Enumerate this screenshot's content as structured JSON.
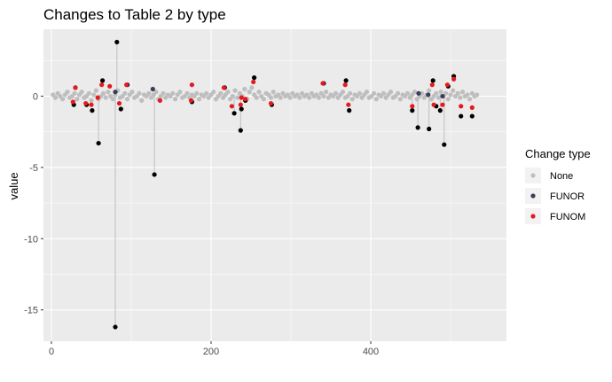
{
  "chart_data": {
    "type": "scatter",
    "title": "Changes to Table 2 by type",
    "xlabel": "",
    "ylabel": "value",
    "xlim": [
      -10,
      570
    ],
    "ylim": [
      -17.2,
      4.7
    ],
    "x_ticks": [
      0,
      200,
      400
    ],
    "y_ticks": [
      -15,
      -10,
      -5,
      0
    ],
    "x_tick_labels": [
      "0",
      "200",
      "400"
    ],
    "y_tick_labels": [
      "-15",
      "-10",
      "-5",
      "0"
    ],
    "grid": true,
    "background": "#ebebeb",
    "grid_color": "#ffffff",
    "legend": {
      "title": "Change type",
      "position": "right",
      "entries": [
        {
          "label": "None",
          "color": "#bebebe"
        },
        {
          "label": "FUNOR",
          "color": "#3b3b5c"
        },
        {
          "label": "FUNOM",
          "color": "#e41a1c"
        }
      ]
    },
    "segment_color": "#bebebe",
    "funor_point_color": "#000000",
    "series": [
      {
        "name": "None",
        "color": "#bebebe",
        "points": [
          [
            2,
            0.1
          ],
          [
            5,
            -0.1
          ],
          [
            8,
            0.2
          ],
          [
            11,
            0.0
          ],
          [
            14,
            -0.2
          ],
          [
            17,
            0.1
          ],
          [
            20,
            0.3
          ],
          [
            23,
            -0.1
          ],
          [
            26,
            0.0
          ],
          [
            29,
            0.2
          ],
          [
            32,
            -0.2
          ],
          [
            35,
            0.1
          ],
          [
            38,
            0.3
          ],
          [
            41,
            -0.1
          ],
          [
            44,
            0.0
          ],
          [
            47,
            0.2
          ],
          [
            50,
            -0.3
          ],
          [
            53,
            0.1
          ],
          [
            56,
            0.4
          ],
          [
            59,
            -0.2
          ],
          [
            62,
            0.0
          ],
          [
            65,
            0.2
          ],
          [
            68,
            -0.1
          ],
          [
            71,
            0.3
          ],
          [
            74,
            0.0
          ],
          [
            77,
            -0.2
          ],
          [
            80,
            0.1
          ],
          [
            83,
            0.4
          ],
          [
            86,
            -0.1
          ],
          [
            89,
            0.0
          ],
          [
            92,
            0.2
          ],
          [
            95,
            -0.2
          ],
          [
            98,
            0.1
          ],
          [
            101,
            0.3
          ],
          [
            104,
            -0.1
          ],
          [
            107,
            0.0
          ],
          [
            110,
            0.2
          ],
          [
            113,
            -0.3
          ],
          [
            116,
            0.1
          ],
          [
            119,
            0.0
          ],
          [
            122,
            0.2
          ],
          [
            125,
            -0.1
          ],
          [
            128,
            0.1
          ],
          [
            131,
            0.3
          ],
          [
            134,
            -0.2
          ],
          [
            137,
            0.0
          ],
          [
            140,
            0.2
          ],
          [
            143,
            -0.1
          ],
          [
            146,
            0.1
          ],
          [
            149,
            0.0
          ],
          [
            152,
            0.2
          ],
          [
            155,
            -0.2
          ],
          [
            158,
            0.1
          ],
          [
            161,
            0.3
          ],
          [
            164,
            -0.1
          ],
          [
            167,
            0.0
          ],
          [
            170,
            0.2
          ],
          [
            173,
            -0.1
          ],
          [
            176,
            0.1
          ],
          [
            179,
            0.0
          ],
          [
            182,
            0.2
          ],
          [
            185,
            -0.2
          ],
          [
            188,
            0.1
          ],
          [
            191,
            0.0
          ],
          [
            194,
            0.2
          ],
          [
            197,
            -0.1
          ],
          [
            200,
            0.1
          ],
          [
            203,
            0.3
          ],
          [
            206,
            -0.2
          ],
          [
            209,
            0.0
          ],
          [
            212,
            0.2
          ],
          [
            215,
            -0.1
          ],
          [
            218,
            0.1
          ],
          [
            221,
            0.3
          ],
          [
            224,
            -0.2
          ],
          [
            227,
            0.0
          ],
          [
            230,
            0.4
          ],
          [
            233,
            -0.1
          ],
          [
            236,
            0.2
          ],
          [
            239,
            0.0
          ],
          [
            242,
            0.5
          ],
          [
            245,
            -0.2
          ],
          [
            248,
            0.3
          ],
          [
            251,
            0.6
          ],
          [
            254,
            0.1
          ],
          [
            257,
            -0.1
          ],
          [
            260,
            0.3
          ],
          [
            263,
            0.0
          ],
          [
            266,
            -0.2
          ],
          [
            269,
            0.2
          ],
          [
            272,
            0.1
          ],
          [
            275,
            -0.1
          ],
          [
            278,
            0.3
          ],
          [
            281,
            0.0
          ],
          [
            284,
            0.1
          ],
          [
            287,
            -0.1
          ],
          [
            290,
            0.2
          ],
          [
            293,
            0.0
          ],
          [
            296,
            0.1
          ],
          [
            299,
            -0.1
          ],
          [
            302,
            0.2
          ],
          [
            305,
            0.0
          ],
          [
            308,
            0.1
          ],
          [
            311,
            -0.1
          ],
          [
            314,
            0.2
          ],
          [
            317,
            0.0
          ],
          [
            320,
            0.1
          ],
          [
            323,
            -0.1
          ],
          [
            326,
            0.2
          ],
          [
            329,
            0.0
          ],
          [
            332,
            0.1
          ],
          [
            335,
            -0.1
          ],
          [
            338,
            0.2
          ],
          [
            341,
            0.0
          ],
          [
            344,
            0.3
          ],
          [
            347,
            -0.1
          ],
          [
            350,
            0.1
          ],
          [
            353,
            0.0
          ],
          [
            356,
            0.2
          ],
          [
            359,
            -0.1
          ],
          [
            362,
            0.1
          ],
          [
            365,
            0.3
          ],
          [
            368,
            -0.1
          ],
          [
            371,
            0.0
          ],
          [
            374,
            0.2
          ],
          [
            377,
            -0.2
          ],
          [
            380,
            0.1
          ],
          [
            383,
            0.0
          ],
          [
            386,
            0.2
          ],
          [
            389,
            -0.1
          ],
          [
            392,
            0.1
          ],
          [
            395,
            0.3
          ],
          [
            398,
            -0.1
          ],
          [
            401,
            0.0
          ],
          [
            404,
            0.2
          ],
          [
            407,
            -0.2
          ],
          [
            410,
            0.1
          ],
          [
            413,
            0.0
          ],
          [
            416,
            0.2
          ],
          [
            419,
            -0.1
          ],
          [
            422,
            0.1
          ],
          [
            425,
            0.3
          ],
          [
            428,
            -0.1
          ],
          [
            431,
            0.0
          ],
          [
            434,
            0.2
          ],
          [
            437,
            -0.2
          ],
          [
            440,
            0.1
          ],
          [
            443,
            0.0
          ],
          [
            446,
            0.2
          ],
          [
            449,
            -0.1
          ],
          [
            452,
            0.1
          ],
          [
            455,
            0.3
          ],
          [
            458,
            -0.2
          ],
          [
            461,
            0.0
          ],
          [
            464,
            0.2
          ],
          [
            467,
            -0.1
          ],
          [
            470,
            0.1
          ],
          [
            473,
            0.4
          ],
          [
            476,
            -0.2
          ],
          [
            479,
            0.0
          ],
          [
            482,
            0.2
          ],
          [
            485,
            -0.1
          ],
          [
            488,
            0.3
          ],
          [
            491,
            0.0
          ],
          [
            494,
            0.2
          ],
          [
            497,
            -0.2
          ],
          [
            500,
            0.1
          ],
          [
            503,
            0.4
          ],
          [
            506,
            0.0
          ],
          [
            509,
            0.2
          ],
          [
            512,
            -0.1
          ],
          [
            515,
            0.3
          ],
          [
            518,
            0.0
          ],
          [
            521,
            0.1
          ],
          [
            524,
            -0.2
          ],
          [
            527,
            0.2
          ],
          [
            530,
            0.0
          ],
          [
            533,
            0.1
          ]
        ]
      },
      {
        "name": "FUNOR",
        "color": "#3b3b5c",
        "points": [
          [
            80,
            0.3
          ],
          [
            127,
            0.5
          ],
          [
            460,
            0.2
          ],
          [
            472,
            0.1
          ],
          [
            490,
            0.0
          ]
        ]
      },
      {
        "name": "FUNOM",
        "color": "#e41a1c",
        "points": [
          [
            27,
            -0.4
          ],
          [
            30,
            0.6
          ],
          [
            43,
            -0.5
          ],
          [
            50,
            -0.6
          ],
          [
            58,
            -0.1
          ],
          [
            63,
            0.8
          ],
          [
            73,
            0.7
          ],
          [
            85,
            -0.5
          ],
          [
            94,
            0.8
          ],
          [
            136,
            -0.3
          ],
          [
            175,
            -0.3
          ],
          [
            176,
            0.8
          ],
          [
            216,
            0.6
          ],
          [
            226,
            -0.7
          ],
          [
            237,
            -0.6
          ],
          [
            238,
            -0.1
          ],
          [
            243,
            -0.2
          ],
          [
            253,
            1.0
          ],
          [
            275,
            -0.5
          ],
          [
            340,
            0.9
          ],
          [
            368,
            0.8
          ],
          [
            372,
            -0.6
          ],
          [
            452,
            -0.7
          ],
          [
            477,
            0.8
          ],
          [
            479,
            -0.6
          ],
          [
            490,
            -0.6
          ],
          [
            496,
            0.8
          ],
          [
            504,
            1.2
          ],
          [
            513,
            -0.7
          ],
          [
            527,
            -0.8
          ]
        ]
      }
    ],
    "segments": [
      {
        "x": 82,
        "y1": 3.8,
        "y2": 0.2
      },
      {
        "x": 80,
        "y1": -16.2,
        "y2": 0.3
      },
      {
        "x": 59,
        "y1": -3.3,
        "y2": -0.1
      },
      {
        "x": 129,
        "y1": -5.5,
        "y2": 0.5
      },
      {
        "x": 237,
        "y1": -2.4,
        "y2": -0.2
      },
      {
        "x": 459,
        "y1": -2.2,
        "y2": 0.2
      },
      {
        "x": 473,
        "y1": -2.3,
        "y2": 0.1
      },
      {
        "x": 492,
        "y1": -3.4,
        "y2": 0.0
      },
      {
        "x": 229,
        "y1": -1.2,
        "y2": -0.1
      },
      {
        "x": 452,
        "y1": -1.0,
        "y2": -0.1
      },
      {
        "x": 487,
        "y1": -1.0,
        "y2": 0.2
      }
    ],
    "funor_black_points": [
      [
        82,
        3.8
      ],
      [
        80,
        -16.2
      ],
      [
        59,
        -3.3
      ],
      [
        129,
        -5.5
      ],
      [
        237,
        -2.4
      ],
      [
        459,
        -2.2
      ],
      [
        473,
        -2.3
      ],
      [
        492,
        -3.4
      ],
      [
        28,
        -0.6
      ],
      [
        30,
        0.6
      ],
      [
        44,
        -0.6
      ],
      [
        51,
        -1.0
      ],
      [
        64,
        1.1
      ],
      [
        87,
        -0.9
      ],
      [
        95,
        0.8
      ],
      [
        176,
        -0.4
      ],
      [
        217,
        0.6
      ],
      [
        229,
        -1.2
      ],
      [
        238,
        -0.9
      ],
      [
        243,
        -0.3
      ],
      [
        254,
        1.3
      ],
      [
        276,
        -0.6
      ],
      [
        341,
        0.9
      ],
      [
        369,
        1.1
      ],
      [
        373,
        -1.0
      ],
      [
        452,
        -1.0
      ],
      [
        478,
        1.1
      ],
      [
        482,
        -0.7
      ],
      [
        487,
        -1.0
      ],
      [
        497,
        0.7
      ],
      [
        504,
        1.4
      ],
      [
        513,
        -1.4
      ],
      [
        527,
        -1.4
      ]
    ]
  }
}
